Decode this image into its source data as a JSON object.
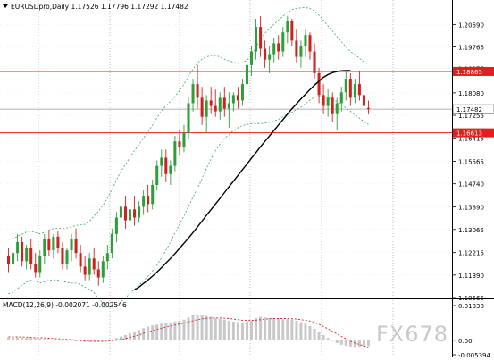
{
  "header": {
    "price_title": "EURUSDpro,Daily  1.17526 1.17796 1.17292 1.17482",
    "macd_title": "MACD(12,26,9) -0.002071 -0.002546"
  },
  "watermark": {
    "text": "FX678"
  },
  "colors": {
    "bull_candle": "#2f9e3a",
    "bear_candle": "#d02020",
    "moving_average": "#000000",
    "bollinger": "#3aa860",
    "level_line": "#e02020",
    "level_label_bg": "#e02020",
    "current_price_line": "#9a9a9a",
    "grid": "#a0a0a0",
    "macd_hist": "#c8c8c8",
    "macd_signal": "#e02020"
  },
  "chart_data": [
    {
      "type": "candlestick",
      "instrument": "EURUSDpro",
      "timeframe": "Daily",
      "ohlc_last": {
        "open": 1.17526,
        "high": 1.17796,
        "low": 1.17292,
        "close": 1.17482
      },
      "ylim": [
        1.10565,
        1.21061
      ],
      "y_ticks": [
        "1.20590",
        "1.19765",
        "1.18975",
        "1.18080",
        "1.17255",
        "1.16415",
        "1.15565",
        "1.14740",
        "1.13890",
        "1.13065",
        "1.12215",
        "1.11390",
        "1.10565"
      ],
      "levels": [
        {
          "value": 1.18865,
          "label": "1.18865"
        },
        {
          "value": 1.16613,
          "label": "1.16613"
        }
      ],
      "current_price": {
        "value": 1.17482,
        "label": "1.17482"
      },
      "grid": true,
      "candles": [
        [
          1.121,
          1.124,
          1.115,
          1.118
        ],
        [
          1.118,
          1.123,
          1.113,
          1.122
        ],
        [
          1.122,
          1.129,
          1.119,
          1.126
        ],
        [
          1.126,
          1.128,
          1.117,
          1.119
        ],
        [
          1.119,
          1.125,
          1.116,
          1.124
        ],
        [
          1.124,
          1.127,
          1.116,
          1.118
        ],
        [
          1.118,
          1.122,
          1.113,
          1.115
        ],
        [
          1.115,
          1.123,
          1.113,
          1.121
        ],
        [
          1.121,
          1.129,
          1.118,
          1.127
        ],
        [
          1.127,
          1.13,
          1.121,
          1.123
        ],
        [
          1.123,
          1.129,
          1.12,
          1.128
        ],
        [
          1.128,
          1.13,
          1.122,
          1.124
        ],
        [
          1.124,
          1.126,
          1.116,
          1.118
        ],
        [
          1.118,
          1.124,
          1.116,
          1.123
        ],
        [
          1.123,
          1.129,
          1.119,
          1.127
        ],
        [
          1.127,
          1.131,
          1.12,
          1.122
        ],
        [
          1.122,
          1.125,
          1.115,
          1.117
        ],
        [
          1.117,
          1.121,
          1.112,
          1.114
        ],
        [
          1.114,
          1.122,
          1.112,
          1.12
        ],
        [
          1.12,
          1.124,
          1.114,
          1.116
        ],
        [
          1.116,
          1.119,
          1.11,
          1.113
        ],
        [
          1.113,
          1.121,
          1.111,
          1.119
        ],
        [
          1.119,
          1.125,
          1.116,
          1.122
        ],
        [
          1.122,
          1.131,
          1.12,
          1.129
        ],
        [
          1.129,
          1.137,
          1.126,
          1.135
        ],
        [
          1.135,
          1.142,
          1.13,
          1.139
        ],
        [
          1.139,
          1.143,
          1.131,
          1.134
        ],
        [
          1.134,
          1.14,
          1.131,
          1.138
        ],
        [
          1.138,
          1.143,
          1.132,
          1.135
        ],
        [
          1.135,
          1.141,
          1.133,
          1.139
        ],
        [
          1.139,
          1.145,
          1.136,
          1.143
        ],
        [
          1.143,
          1.147,
          1.137,
          1.14
        ],
        [
          1.14,
          1.149,
          1.138,
          1.147
        ],
        [
          1.147,
          1.156,
          1.145,
          1.154
        ],
        [
          1.154,
          1.16,
          1.15,
          1.157
        ],
        [
          1.157,
          1.16,
          1.148,
          1.151
        ],
        [
          1.151,
          1.156,
          1.147,
          1.154
        ],
        [
          1.154,
          1.165,
          1.152,
          1.163
        ],
        [
          1.163,
          1.167,
          1.158,
          1.161
        ],
        [
          1.161,
          1.169,
          1.159,
          1.166
        ],
        [
          1.166,
          1.179,
          1.164,
          1.177
        ],
        [
          1.177,
          1.186,
          1.174,
          1.184
        ],
        [
          1.184,
          1.191,
          1.175,
          1.179
        ],
        [
          1.179,
          1.183,
          1.169,
          1.172
        ],
        [
          1.172,
          1.18,
          1.166,
          1.178
        ],
        [
          1.178,
          1.183,
          1.173,
          1.176
        ],
        [
          1.176,
          1.182,
          1.172,
          1.174
        ],
        [
          1.174,
          1.181,
          1.171,
          1.179
        ],
        [
          1.179,
          1.183,
          1.172,
          1.175
        ],
        [
          1.175,
          1.181,
          1.168,
          1.177
        ],
        [
          1.177,
          1.181,
          1.174,
          1.18
        ],
        [
          1.18,
          1.183,
          1.175,
          1.178
        ],
        [
          1.178,
          1.186,
          1.176,
          1.184
        ],
        [
          1.184,
          1.193,
          1.182,
          1.191
        ],
        [
          1.191,
          1.198,
          1.187,
          1.196
        ],
        [
          1.196,
          1.208,
          1.193,
          1.205
        ],
        [
          1.205,
          1.209,
          1.194,
          1.197
        ],
        [
          1.197,
          1.2,
          1.19,
          1.193
        ],
        [
          1.193,
          1.198,
          1.188,
          1.195
        ],
        [
          1.195,
          1.201,
          1.192,
          1.199
        ],
        [
          1.199,
          1.202,
          1.193,
          1.196
        ],
        [
          1.196,
          1.205,
          1.194,
          1.203
        ],
        [
          1.203,
          1.209,
          1.199,
          1.207
        ],
        [
          1.207,
          1.208,
          1.198,
          1.2
        ],
        [
          1.2,
          1.204,
          1.192,
          1.194
        ],
        [
          1.194,
          1.2,
          1.19,
          1.198
        ],
        [
          1.198,
          1.204,
          1.194,
          1.202
        ],
        [
          1.202,
          1.203,
          1.193,
          1.196
        ],
        [
          1.196,
          1.199,
          1.186,
          1.188
        ],
        [
          1.188,
          1.19,
          1.177,
          1.18
        ],
        [
          1.18,
          1.184,
          1.173,
          1.176
        ],
        [
          1.176,
          1.182,
          1.172,
          1.179
        ],
        [
          1.179,
          1.181,
          1.17,
          1.173
        ],
        [
          1.173,
          1.179,
          1.167,
          1.177
        ],
        [
          1.177,
          1.183,
          1.174,
          1.181
        ],
        [
          1.181,
          1.189,
          1.178,
          1.186
        ],
        [
          1.186,
          1.188,
          1.176,
          1.179
        ],
        [
          1.179,
          1.186,
          1.177,
          1.184
        ],
        [
          1.184,
          1.189,
          1.178,
          1.18
        ],
        [
          1.18,
          1.183,
          1.173,
          1.176
        ],
        [
          1.17526,
          1.17796,
          1.17292,
          1.17482
        ]
      ],
      "sma": [
        1.1085,
        1.1095,
        1.1108,
        1.1121,
        1.1135,
        1.115,
        1.1166,
        1.1183,
        1.12,
        1.1218,
        1.1237,
        1.1256,
        1.1275,
        1.1295,
        1.1316,
        1.1337,
        1.1358,
        1.1379,
        1.14,
        1.1421,
        1.1442,
        1.1463,
        1.1484,
        1.1505,
        1.1526,
        1.1547,
        1.1568,
        1.1589,
        1.161,
        1.163,
        1.165,
        1.167,
        1.169,
        1.171,
        1.173,
        1.175,
        1.1768,
        1.1786,
        1.1803,
        1.182,
        1.1836,
        1.1851,
        1.1865,
        1.1875,
        1.1882,
        1.1886,
        1.1889,
        1.189,
        1.189
      ],
      "sma_start_index": 28,
      "bollinger_mid": [
        1.117,
        1.1175,
        1.1185,
        1.1195,
        1.1205,
        1.121,
        1.1205,
        1.12,
        1.1205,
        1.1212,
        1.1215,
        1.1216,
        1.1214,
        1.1212,
        1.1213,
        1.1215,
        1.1214,
        1.121,
        1.1212,
        1.1215,
        1.1214,
        1.1215,
        1.1222,
        1.1238,
        1.1258,
        1.128,
        1.13,
        1.1322,
        1.1342,
        1.136,
        1.138,
        1.14,
        1.1422,
        1.1446,
        1.1472,
        1.1495,
        1.1518,
        1.1545,
        1.157,
        1.1598,
        1.163,
        1.166,
        1.1688,
        1.1712,
        1.1735,
        1.1755,
        1.177,
        1.178,
        1.1786,
        1.179,
        1.1795,
        1.1798,
        1.1803,
        1.181,
        1.182,
        1.1835,
        1.185,
        1.1862,
        1.1872,
        1.1882,
        1.1893,
        1.1905,
        1.1917,
        1.1925,
        1.1932,
        1.1938,
        1.1945,
        1.195,
        1.195,
        1.1945,
        1.1935,
        1.1922,
        1.191,
        1.1895,
        1.188,
        1.1865,
        1.185,
        1.1838,
        1.1825,
        1.1812,
        1.1802
      ],
      "bollinger_width": [
        0.01,
        0.0098,
        0.0096,
        0.0094,
        0.0092,
        0.009,
        0.009,
        0.009,
        0.0091,
        0.0092,
        0.0094,
        0.0095,
        0.0097,
        0.01,
        0.0103,
        0.0106,
        0.011,
        0.0115,
        0.0125,
        0.014,
        0.016,
        0.018,
        0.02,
        0.0215,
        0.023,
        0.024,
        0.0245,
        0.025,
        0.0255,
        0.0258,
        0.0262,
        0.0265,
        0.0268,
        0.027,
        0.027,
        0.0265,
        0.0258,
        0.025,
        0.0245,
        0.0242,
        0.024,
        0.0235,
        0.023,
        0.022,
        0.0205,
        0.019,
        0.0175,
        0.016,
        0.0145,
        0.0135,
        0.0125,
        0.0118,
        0.0115,
        0.0118,
        0.0125,
        0.014,
        0.0155,
        0.0165,
        0.0172,
        0.0178,
        0.0182,
        0.0185,
        0.0187,
        0.0188,
        0.0186,
        0.0182,
        0.0176,
        0.0168,
        0.0158,
        0.0148,
        0.014,
        0.0132,
        0.0125,
        0.012,
        0.0115,
        0.0112,
        0.011,
        0.011,
        0.011,
        0.011,
        0.011
      ]
    },
    {
      "type": "bar",
      "indicator": "MACD",
      "parameters": "12,26,9",
      "main_value": -0.002071,
      "signal_value": -0.002546,
      "ylim": [
        -0.005394,
        0.01338
      ],
      "y_ticks": [
        "0.01338",
        "0.00",
        "-0.005394"
      ],
      "histogram": [
        0.001,
        0.001,
        0.001,
        0.0009,
        0.0008,
        0.0008,
        0.0007,
        0.0006,
        0.0005,
        0.0004,
        0.0002,
        0.0001,
        0.0,
        0.0,
        -0.0002,
        -0.0004,
        -0.0005,
        -0.0006,
        -0.0006,
        -0.0005,
        -0.0004,
        -0.0003,
        -0.0001,
        0.0003,
        0.0008,
        0.0013,
        0.0018,
        0.0024,
        0.003,
        0.0036,
        0.0042,
        0.0048,
        0.0052,
        0.0055,
        0.0058,
        0.006,
        0.0062,
        0.0065,
        0.0068,
        0.0072,
        0.008,
        0.0088,
        0.009,
        0.0088,
        0.0085,
        0.0082,
        0.0078,
        0.0075,
        0.0072,
        0.0068,
        0.0065,
        0.0063,
        0.0062,
        0.0065,
        0.007,
        0.0078,
        0.0082,
        0.008,
        0.0078,
        0.0078,
        0.0076,
        0.0074,
        0.0074,
        0.0072,
        0.0068,
        0.0063,
        0.0058,
        0.005,
        0.004,
        0.003,
        0.0018,
        0.0008,
        -0.0002,
        -0.001,
        -0.0016,
        -0.002,
        -0.0022,
        -0.0024,
        -0.0023,
        -0.0022,
        -0.002071
      ],
      "signal": [
        0.0012,
        0.0012,
        0.0012,
        0.0011,
        0.0011,
        0.001,
        0.0009,
        0.0009,
        0.0008,
        0.0007,
        0.0006,
        0.0005,
        0.0004,
        0.0003,
        0.0002,
        0.0001,
        -0.0001,
        -0.0002,
        -0.0003,
        -0.0004,
        -0.0004,
        -0.0004,
        -0.0003,
        -0.0002,
        0.0,
        0.0003,
        0.0006,
        0.001,
        0.0014,
        0.0019,
        0.0024,
        0.0029,
        0.0033,
        0.0038,
        0.0042,
        0.0046,
        0.005,
        0.0053,
        0.0057,
        0.006,
        0.0064,
        0.0068,
        0.0072,
        0.0075,
        0.0077,
        0.0078,
        0.0078,
        0.0078,
        0.0077,
        0.0076,
        0.0074,
        0.0072,
        0.007,
        0.0069,
        0.0069,
        0.007,
        0.0072,
        0.0074,
        0.0075,
        0.0076,
        0.0076,
        0.0076,
        0.0076,
        0.0075,
        0.0074,
        0.0072,
        0.007,
        0.0067,
        0.0062,
        0.0056,
        0.0048,
        0.004,
        0.0031,
        0.0022,
        0.0013,
        0.0005,
        -0.0003,
        -0.001,
        -0.0015,
        -0.002,
        -0.002546
      ]
    }
  ]
}
